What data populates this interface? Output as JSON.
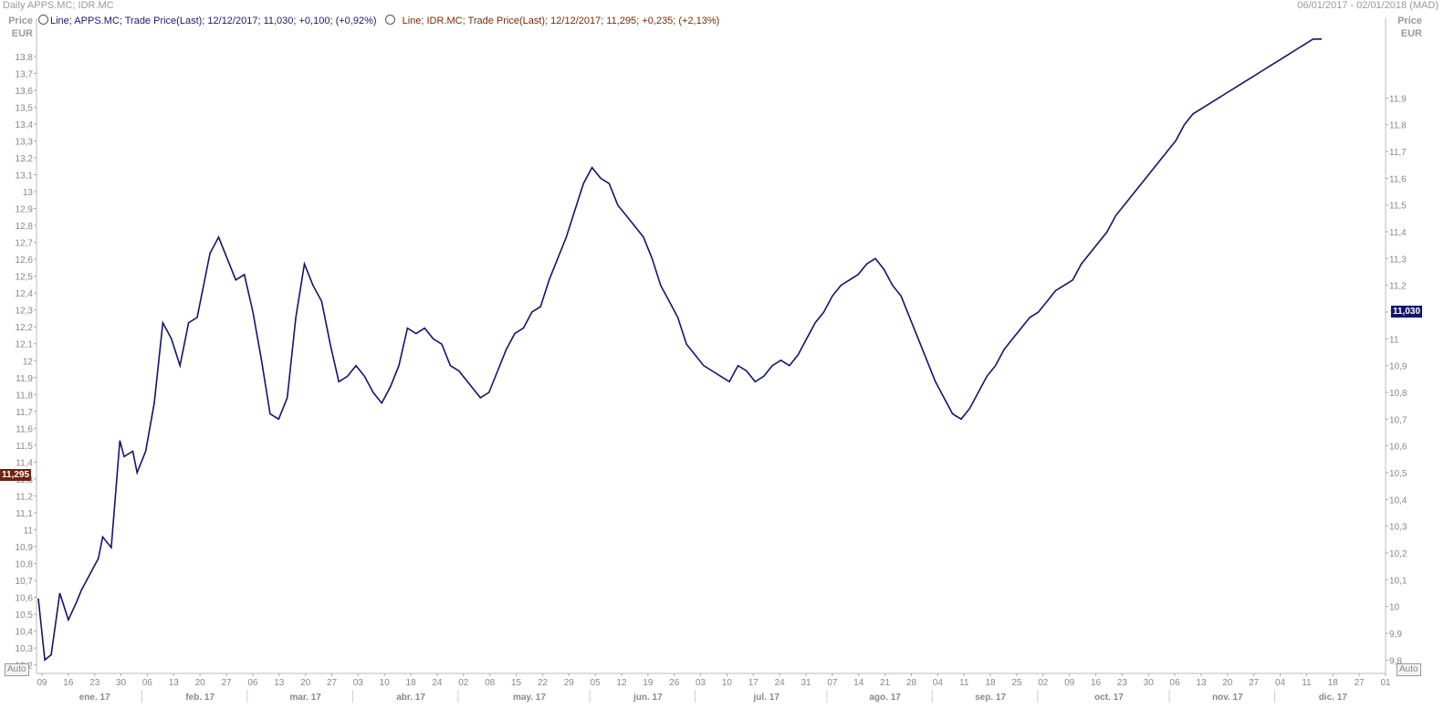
{
  "header": {
    "title": "Daily APPS.MC; IDR.MC",
    "date_range": "06/01/2017 - 02/01/2018 (MAD)"
  },
  "legend": {
    "series_a": "Line; APPS.MC; Trade Price(Last);  12/12/2017; 11,030; +0,100; (+0,92%)",
    "series_b": "Line; IDR.MC; Trade Price(Last);  12/12/2017; 11,295; +0,235; (+2,13%)"
  },
  "axes": {
    "left_title": "Price",
    "left_unit": "EUR",
    "right_title": "Price",
    "right_unit": "EUR",
    "auto_left": "Auto",
    "auto_right": "Auto",
    "last_left": "11,295",
    "last_right": "11,030"
  },
  "colors": {
    "apps": "#14146e",
    "idr": "#7a2a0a"
  },
  "chart_data": {
    "type": "line",
    "y_left": {
      "min": 10.15,
      "max": 13.95,
      "ticks": [
        10.2,
        10.3,
        10.4,
        10.5,
        10.6,
        10.7,
        10.8,
        10.9,
        11,
        11.1,
        11.2,
        11.3,
        11.4,
        11.5,
        11.6,
        11.7,
        11.8,
        11.9,
        12,
        12.1,
        12.2,
        12.3,
        12.4,
        12.5,
        12.6,
        12.7,
        12.8,
        12.9,
        13,
        13.1,
        13.2,
        13.3,
        13.4,
        13.5,
        13.6,
        13.7,
        13.8
      ]
    },
    "y_right": {
      "min": 9.75,
      "max": 12.15,
      "ticks": [
        9.8,
        9.9,
        10,
        10.1,
        10.2,
        10.3,
        10.4,
        10.5,
        10.6,
        10.7,
        10.8,
        10.9,
        11,
        11.1,
        11.2,
        11.3,
        11.4,
        11.5,
        11.6,
        11.7,
        11.8,
        11.9
      ]
    },
    "day_ticks": [
      "09",
      "16",
      "23",
      "30",
      "06",
      "13",
      "20",
      "27",
      "06",
      "13",
      "20",
      "27",
      "03",
      "10",
      "18",
      "24",
      "02",
      "08",
      "15",
      "22",
      "29",
      "05",
      "12",
      "19",
      "26",
      "03",
      "10",
      "17",
      "24",
      "31",
      "07",
      "14",
      "21",
      "28",
      "04",
      "11",
      "18",
      "25",
      "02",
      "09",
      "16",
      "23",
      "30",
      "06",
      "13",
      "20",
      "27",
      "04",
      "11",
      "18",
      "27",
      "01"
    ],
    "months": [
      "ene. 17",
      "feb. 17",
      "mar. 17",
      "abr. 17",
      "may. 17",
      "jun. 17",
      "jul. 17",
      "ago. 17",
      "sep. 17",
      "oct. 17",
      "nov. 17",
      "dic. 17"
    ],
    "month_tick_index": [
      0,
      4,
      8,
      12,
      16,
      21,
      25,
      30,
      34,
      38,
      43,
      47
    ],
    "series": [
      {
        "name": "APPS.MC",
        "axis": "right",
        "color": "#14146e",
        "points": [
          [
            0,
            10.03
          ],
          [
            0.15,
            9.8
          ],
          [
            0.3,
            9.82
          ],
          [
            0.5,
            10.05
          ],
          [
            0.7,
            9.95
          ],
          [
            0.9,
            10.02
          ],
          [
            1.0,
            10.06
          ],
          [
            1.2,
            10.12
          ],
          [
            1.4,
            10.18
          ],
          [
            1.5,
            10.26
          ],
          [
            1.7,
            10.22
          ],
          [
            1.9,
            10.62
          ],
          [
            2.0,
            10.56
          ],
          [
            2.2,
            10.58
          ],
          [
            2.3,
            10.5
          ],
          [
            2.5,
            10.58
          ],
          [
            2.7,
            10.76
          ],
          [
            2.9,
            11.06
          ],
          [
            3.1,
            11.0
          ],
          [
            3.3,
            10.9
          ],
          [
            3.5,
            11.06
          ],
          [
            3.7,
            11.08
          ],
          [
            4.0,
            11.32
          ],
          [
            4.2,
            11.38
          ],
          [
            4.4,
            11.3
          ],
          [
            4.6,
            11.22
          ],
          [
            4.8,
            11.24
          ],
          [
            5.0,
            11.1
          ],
          [
            5.2,
            10.92
          ],
          [
            5.4,
            10.72
          ],
          [
            5.6,
            10.7
          ],
          [
            5.8,
            10.78
          ],
          [
            6.0,
            11.08
          ],
          [
            6.2,
            11.28
          ],
          [
            6.4,
            11.2
          ],
          [
            6.6,
            11.14
          ],
          [
            6.8,
            10.98
          ],
          [
            7.0,
            10.84
          ],
          [
            7.2,
            10.86
          ],
          [
            7.4,
            10.9
          ],
          [
            7.6,
            10.86
          ],
          [
            7.8,
            10.8
          ],
          [
            8.0,
            10.76
          ],
          [
            8.2,
            10.82
          ],
          [
            8.4,
            10.9
          ],
          [
            8.6,
            11.04
          ],
          [
            8.8,
            11.02
          ],
          [
            9.0,
            11.04
          ],
          [
            9.2,
            11.0
          ],
          [
            9.4,
            10.98
          ],
          [
            9.6,
            10.9
          ],
          [
            9.8,
            10.88
          ],
          [
            10.0,
            10.84
          ],
          [
            10.3,
            10.78
          ],
          [
            10.5,
            10.8
          ],
          [
            10.7,
            10.88
          ],
          [
            10.9,
            10.96
          ],
          [
            11.1,
            11.02
          ],
          [
            11.3,
            11.04
          ],
          [
            11.5,
            11.1
          ],
          [
            11.7,
            11.12
          ],
          [
            11.9,
            11.22
          ],
          [
            12.1,
            11.3
          ],
          [
            12.3,
            11.38
          ],
          [
            12.5,
            11.48
          ],
          [
            12.7,
            11.58
          ],
          [
            12.9,
            11.64
          ],
          [
            13.1,
            11.6
          ],
          [
            13.3,
            11.58
          ],
          [
            13.5,
            11.5
          ],
          [
            13.7,
            11.46
          ],
          [
            13.9,
            11.42
          ],
          [
            14.1,
            11.38
          ],
          [
            14.3,
            11.3
          ],
          [
            14.5,
            11.2
          ],
          [
            14.7,
            11.14
          ],
          [
            14.9,
            11.08
          ],
          [
            15.1,
            10.98
          ],
          [
            15.3,
            10.94
          ],
          [
            15.5,
            10.9
          ],
          [
            15.7,
            10.88
          ],
          [
            15.9,
            10.86
          ],
          [
            16.1,
            10.84
          ],
          [
            16.3,
            10.9
          ],
          [
            16.5,
            10.88
          ],
          [
            16.7,
            10.84
          ],
          [
            16.9,
            10.86
          ],
          [
            17.1,
            10.9
          ],
          [
            17.3,
            10.92
          ],
          [
            17.5,
            10.9
          ],
          [
            17.7,
            10.94
          ],
          [
            17.9,
            11.0
          ],
          [
            18.1,
            11.06
          ],
          [
            18.3,
            11.1
          ],
          [
            18.5,
            11.16
          ],
          [
            18.7,
            11.2
          ],
          [
            18.9,
            11.22
          ],
          [
            19.1,
            11.24
          ],
          [
            19.3,
            11.28
          ],
          [
            19.5,
            11.3
          ],
          [
            19.7,
            11.26
          ],
          [
            19.9,
            11.2
          ],
          [
            20.1,
            11.16
          ],
          [
            20.3,
            11.08
          ],
          [
            20.5,
            11.0
          ],
          [
            20.7,
            10.92
          ],
          [
            20.9,
            10.84
          ],
          [
            21.1,
            10.78
          ],
          [
            21.3,
            10.72
          ],
          [
            21.5,
            10.7
          ],
          [
            21.7,
            10.74
          ],
          [
            21.9,
            10.8
          ],
          [
            22.1,
            10.86
          ],
          [
            22.3,
            10.9
          ],
          [
            22.5,
            10.96
          ],
          [
            22.7,
            11.0
          ],
          [
            22.9,
            11.04
          ],
          [
            23.1,
            11.08
          ],
          [
            23.3,
            11.1
          ],
          [
            23.5,
            11.14
          ],
          [
            23.7,
            11.18
          ],
          [
            23.9,
            11.2
          ],
          [
            24.1,
            11.22
          ],
          [
            24.3,
            11.28
          ],
          [
            24.5,
            11.32
          ],
          [
            24.7,
            11.36
          ],
          [
            24.9,
            11.4
          ],
          [
            25.1,
            11.46
          ],
          [
            25.3,
            11.5
          ],
          [
            25.5,
            11.54
          ],
          [
            25.7,
            11.58
          ],
          [
            25.9,
            11.62
          ],
          [
            26.1,
            11.66
          ],
          [
            26.3,
            11.7
          ],
          [
            26.5,
            11.74
          ],
          [
            26.7,
            11.8
          ],
          [
            26.9,
            11.84
          ],
          [
            27.1,
            11.86
          ],
          [
            27.3,
            11.88
          ],
          [
            27.5,
            11.9
          ],
          [
            27.7,
            11.92
          ],
          [
            27.9,
            11.94
          ],
          [
            28.1,
            11.96
          ],
          [
            28.3,
            11.98
          ],
          [
            28.5,
            12.0
          ],
          [
            28.7,
            12.02
          ],
          [
            28.9,
            12.04
          ],
          [
            29.1,
            12.06
          ],
          [
            29.3,
            12.08
          ],
          [
            29.5,
            12.1
          ],
          [
            29.7,
            12.12
          ],
          [
            29.9,
            12.12
          ]
        ]
      },
      {
        "name": "IDR.MC",
        "axis": "left",
        "color": "#7a2a0a",
        "points": []
      }
    ]
  }
}
